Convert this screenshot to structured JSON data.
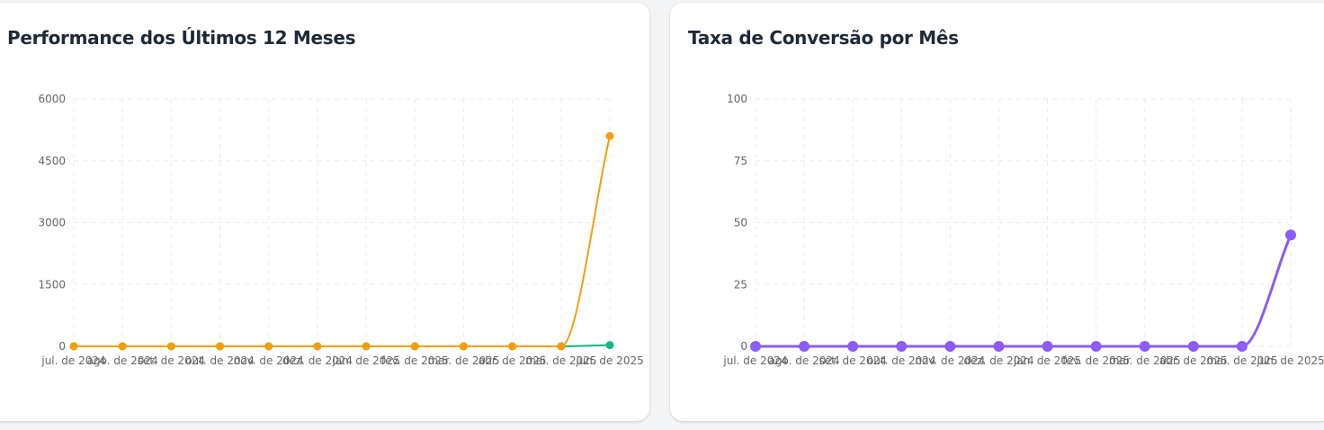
{
  "cards": [
    {
      "title": "Performance dos Últimos 12 Meses"
    },
    {
      "title": "Taxa de Conversão por Mês"
    }
  ],
  "chart_data": [
    {
      "type": "line",
      "title": "Performance dos Últimos 12 Meses",
      "xlabel": "",
      "ylabel": "",
      "categories": [
        "jul. de 2024",
        "ago. de 2024",
        "set. de 2024",
        "out. de 2024",
        "nov. de 2024",
        "dez. de 2024",
        "jan. de 2025",
        "fev. de 2025",
        "mar. de 2025",
        "abr. de 2025",
        "mai. de 2025",
        "jun. de 2025"
      ],
      "y_ticks": [
        "0",
        "1500",
        "3000",
        "4500",
        "6000"
      ],
      "ylim": [
        0,
        6000
      ],
      "grid": true,
      "legend": "none",
      "series": [
        {
          "color": "#10b981",
          "values": [
            0,
            0,
            0,
            0,
            0,
            0,
            0,
            0,
            0,
            0,
            0,
            30
          ]
        },
        {
          "color": "#f59e0b",
          "values": [
            0,
            0,
            0,
            0,
            0,
            0,
            0,
            0,
            0,
            0,
            0,
            5100
          ]
        }
      ]
    },
    {
      "type": "line",
      "title": "Taxa de Conversão por Mês",
      "xlabel": "",
      "ylabel": "",
      "categories": [
        "jul. de 2024",
        "ago. de 2024",
        "set. de 2024",
        "out. de 2024",
        "nov. de 2024",
        "dez. de 2024",
        "jan. de 2025",
        "fev. de 2025",
        "mar. de 2025",
        "abr. de 2025",
        "mai. de 2025",
        "jun. de 2025"
      ],
      "y_ticks": [
        "0",
        "25",
        "50",
        "75",
        "100"
      ],
      "ylim": [
        0,
        100
      ],
      "grid": true,
      "legend": "none",
      "series": [
        {
          "color": "#8b5cf6",
          "values": [
            0,
            0,
            0,
            0,
            0,
            0,
            0,
            0,
            0,
            0,
            0,
            45
          ]
        }
      ]
    }
  ]
}
